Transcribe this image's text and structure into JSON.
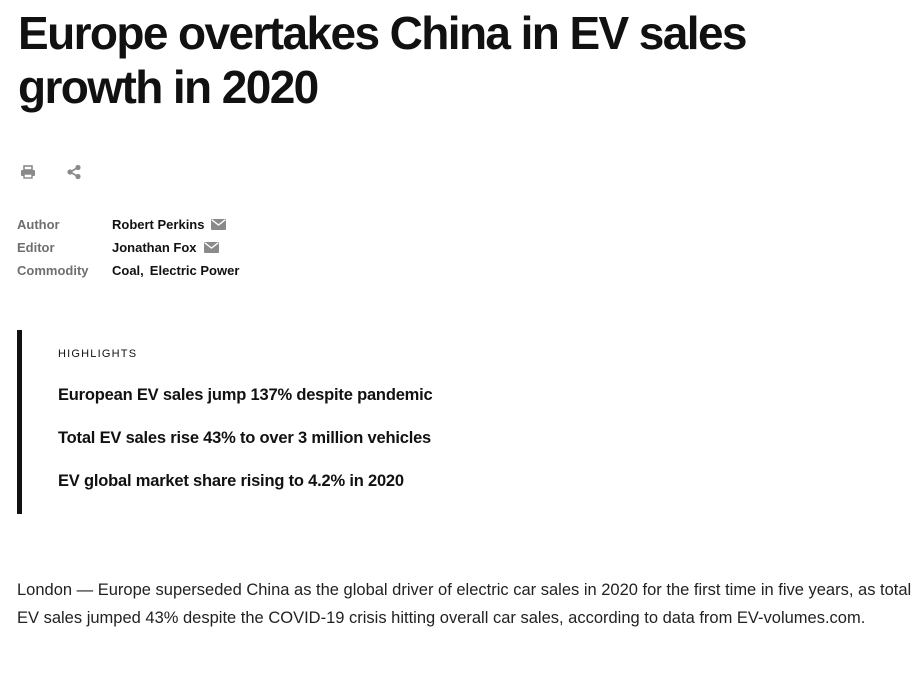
{
  "article": {
    "headline": "Europe overtakes China in EV sales growth in 2020"
  },
  "tools": {
    "print_icon": "print-icon",
    "share_icon": "share-icon"
  },
  "meta": {
    "author_label": "Author",
    "author_value": "Robert Perkins",
    "editor_label": "Editor",
    "editor_value": "Jonathan Fox",
    "commodity_label": "Commodity",
    "commodities": [
      "Coal",
      "Electric Power"
    ],
    "comma": ","
  },
  "highlights": {
    "title": "HIGHLIGHTS",
    "items": [
      "European EV sales jump 137% despite pandemic",
      "Total EV sales rise 43% to over 3 million vehicles",
      "EV global market share rising to 4.2% in 2020"
    ]
  },
  "body": {
    "paragraph": "London — Europe superseded China as the global driver of electric car sales in 2020 for the first time in five years, as total EV sales jumped 43% despite the COVID-19 crisis hitting overall car sales, according to data from EV-volumes.com."
  },
  "colors": {
    "text": "#111111",
    "label": "#6f6f6f",
    "icon": "#8a8a8a",
    "accent_bar": "#111111"
  }
}
